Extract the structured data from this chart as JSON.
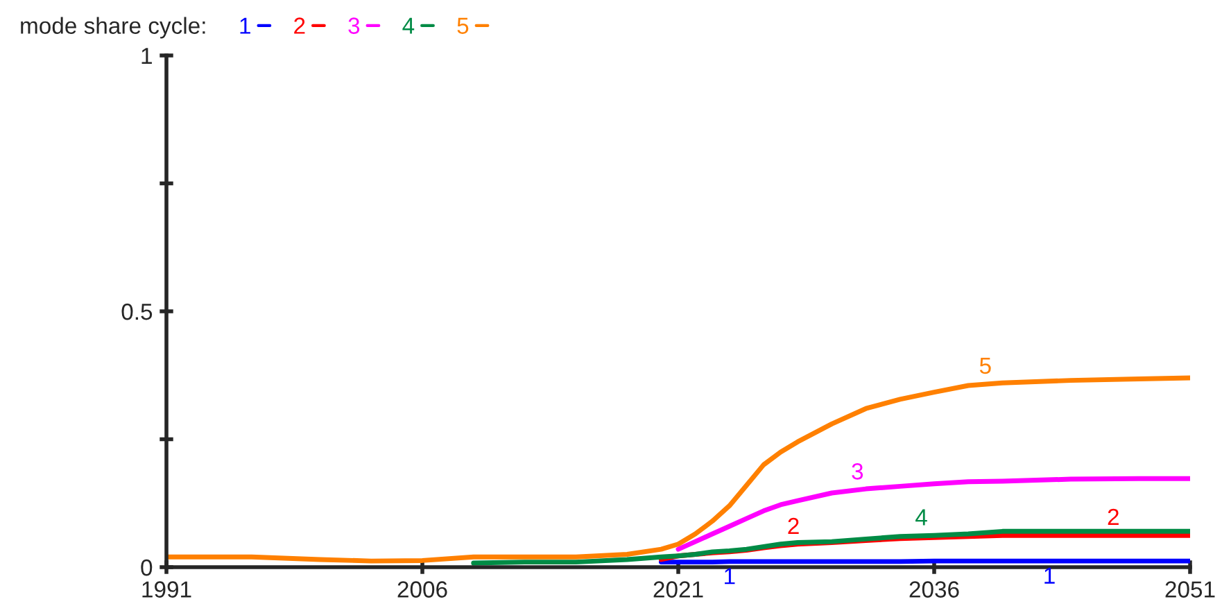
{
  "chart_data": {
    "type": "line",
    "legend_title": "mode share cycle:",
    "legend": "top left",
    "grid": false,
    "marker": "none",
    "line_style": "solid",
    "x": [
      1991,
      1996,
      2000,
      2003,
      2006,
      2009,
      2012,
      2015,
      2018,
      2020,
      2021,
      2022,
      2023,
      2024,
      2025,
      2026,
      2027,
      2028,
      2030,
      2032,
      2034,
      2036,
      2038,
      2040,
      2044,
      2048,
      2051
    ],
    "xlim": [
      1991,
      2051
    ],
    "xticks": [
      1991,
      2006,
      2021,
      2036,
      2051
    ],
    "ylim": [
      0,
      1
    ],
    "yticks": [
      0,
      {
        "value": 0.25,
        "label": null
      },
      0.5,
      {
        "value": 0.75,
        "label": null
      },
      1
    ],
    "series": [
      {
        "name": "1",
        "color": "#0000ff",
        "values": [
          null,
          null,
          null,
          null,
          null,
          null,
          null,
          null,
          null,
          0.01,
          0.01,
          0.01,
          0.01,
          0.011,
          0.011,
          0.011,
          0.011,
          0.011,
          0.011,
          0.011,
          0.011,
          0.012,
          0.012,
          0.012,
          0.012,
          0.012,
          0.012
        ]
      },
      {
        "name": "2",
        "color": "#ff0000",
        "values": [
          null,
          null,
          null,
          null,
          null,
          null,
          null,
          null,
          null,
          0.015,
          0.022,
          0.025,
          0.028,
          0.03,
          0.033,
          0.038,
          0.042,
          0.045,
          0.048,
          0.052,
          0.056,
          0.058,
          0.06,
          0.062,
          0.062,
          0.062,
          0.062
        ]
      },
      {
        "name": "3",
        "color": "#ff00ff",
        "values": [
          null,
          null,
          null,
          null,
          null,
          null,
          null,
          null,
          null,
          null,
          0.035,
          0.05,
          0.065,
          0.08,
          0.095,
          0.11,
          0.122,
          0.13,
          0.145,
          0.153,
          0.158,
          0.163,
          0.167,
          0.168,
          0.172,
          0.173,
          0.173
        ]
      },
      {
        "name": "4",
        "color": "#008b45",
        "values": [
          null,
          null,
          null,
          null,
          null,
          0.008,
          0.01,
          0.01,
          0.015,
          0.02,
          0.022,
          0.025,
          0.03,
          0.032,
          0.035,
          0.04,
          0.045,
          0.048,
          0.05,
          0.055,
          0.06,
          0.062,
          0.065,
          0.07,
          0.07,
          0.07,
          0.07
        ]
      },
      {
        "name": "5",
        "color": "#ff8000",
        "values": [
          0.02,
          0.02,
          0.015,
          0.012,
          0.013,
          0.02,
          0.02,
          0.02,
          0.025,
          0.035,
          0.045,
          0.065,
          0.09,
          0.12,
          0.16,
          0.2,
          0.225,
          0.245,
          0.28,
          0.31,
          0.328,
          0.342,
          0.355,
          0.36,
          0.365,
          0.368,
          0.37
        ]
      }
    ]
  }
}
